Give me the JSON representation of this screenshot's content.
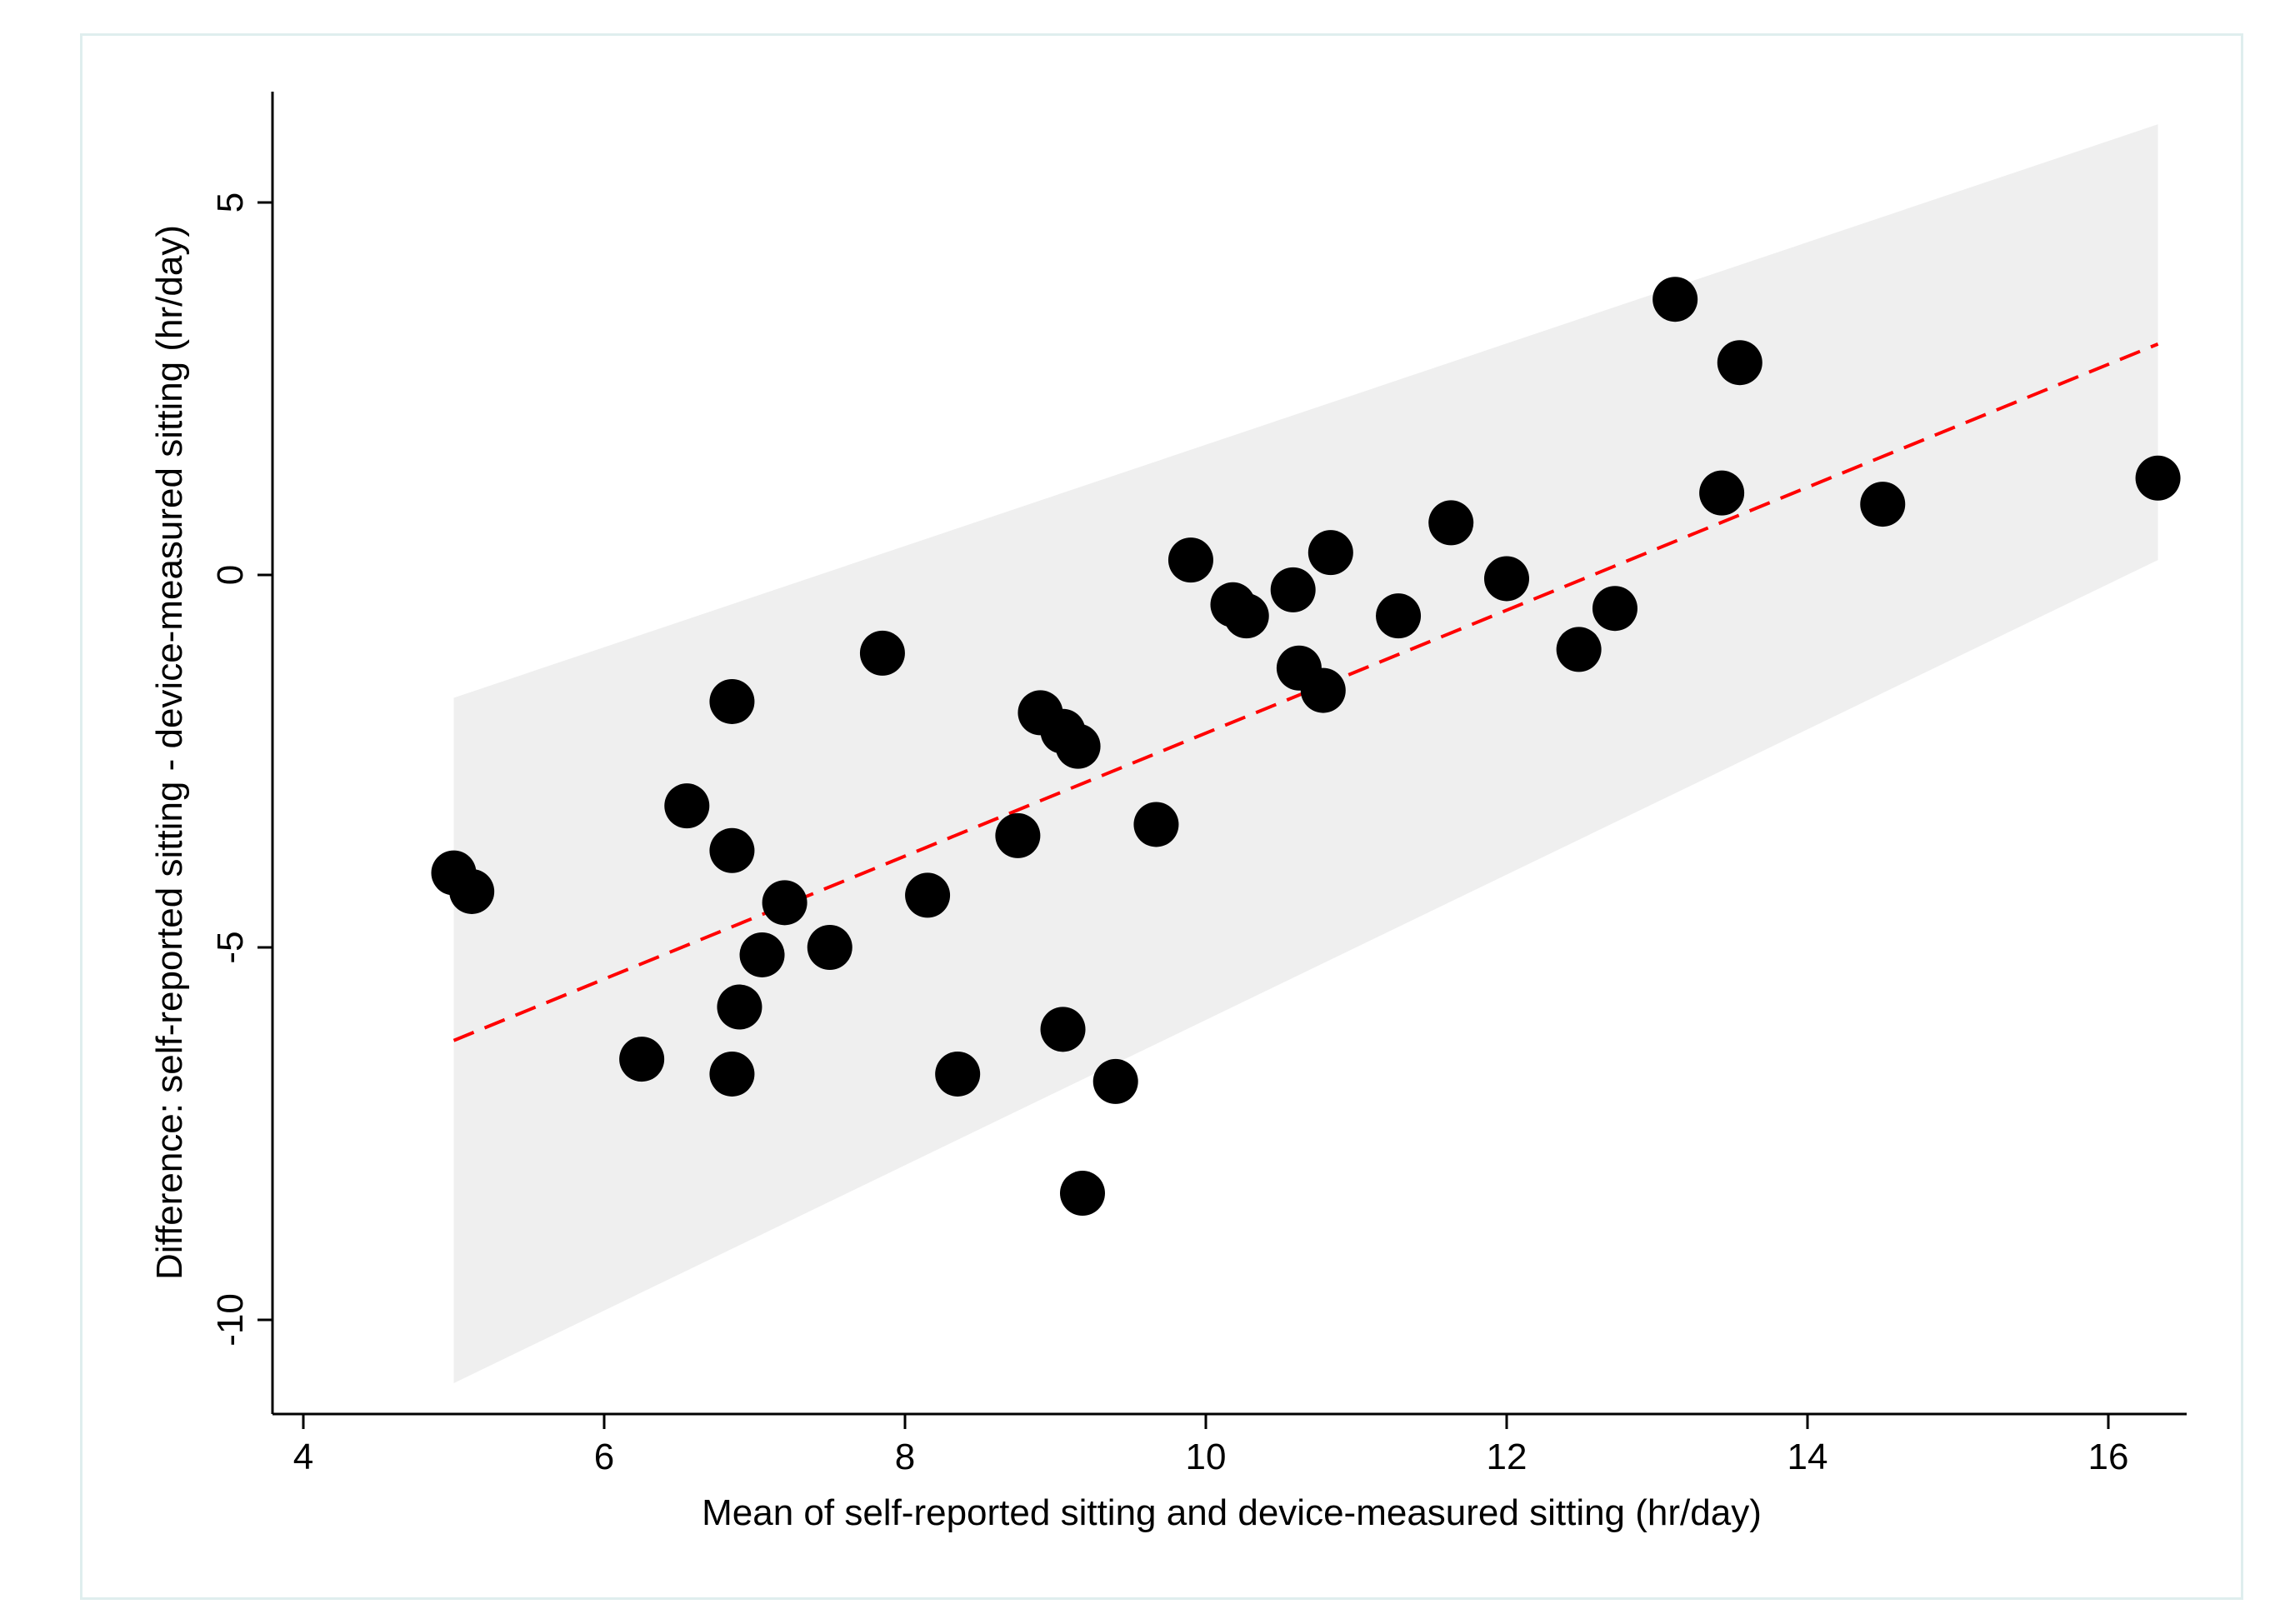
{
  "chart_data": {
    "type": "scatter",
    "xlabel": "Mean of self-reported sitting and device-measured sitting (hr/day)",
    "ylabel": "Difference: self-reported sitting - device-measured sitting (hr/day)",
    "xlim": [
      3.8,
      16.55
    ],
    "ylim": [
      -11.2,
      6.5
    ],
    "xticks": [
      4,
      6,
      8,
      10,
      12,
      14,
      16
    ],
    "yticks": [
      -10,
      -5,
      0,
      5
    ],
    "grid": false,
    "legend": "none",
    "points": [
      {
        "x": 5.0,
        "y": -4.0
      },
      {
        "x": 5.12,
        "y": -4.25
      },
      {
        "x": 6.25,
        "y": -6.5
      },
      {
        "x": 6.55,
        "y": -3.1
      },
      {
        "x": 6.85,
        "y": -1.7
      },
      {
        "x": 6.85,
        "y": -3.7
      },
      {
        "x": 6.85,
        "y": -6.7
      },
      {
        "x": 6.9,
        "y": -5.8
      },
      {
        "x": 7.05,
        "y": -5.1
      },
      {
        "x": 7.2,
        "y": -4.4
      },
      {
        "x": 7.5,
        "y": -5.0
      },
      {
        "x": 7.85,
        "y": -1.05
      },
      {
        "x": 8.15,
        "y": -4.3
      },
      {
        "x": 8.35,
        "y": -6.7
      },
      {
        "x": 8.75,
        "y": -3.5
      },
      {
        "x": 8.9,
        "y": -1.85
      },
      {
        "x": 9.05,
        "y": -2.1
      },
      {
        "x": 9.05,
        "y": -6.1
      },
      {
        "x": 9.15,
        "y": -2.3
      },
      {
        "x": 9.18,
        "y": -8.3
      },
      {
        "x": 9.4,
        "y": -6.8
      },
      {
        "x": 9.67,
        "y": -3.35
      },
      {
        "x": 9.9,
        "y": 0.2
      },
      {
        "x": 10.18,
        "y": -0.4
      },
      {
        "x": 10.27,
        "y": -0.55
      },
      {
        "x": 10.58,
        "y": -0.2
      },
      {
        "x": 10.62,
        "y": -1.25
      },
      {
        "x": 10.78,
        "y": -1.55
      },
      {
        "x": 10.83,
        "y": 0.3
      },
      {
        "x": 11.28,
        "y": -0.55
      },
      {
        "x": 11.63,
        "y": 0.7
      },
      {
        "x": 12.0,
        "y": -0.05
      },
      {
        "x": 12.48,
        "y": -1.0
      },
      {
        "x": 12.72,
        "y": -0.45
      },
      {
        "x": 13.12,
        "y": 3.7
      },
      {
        "x": 13.43,
        "y": 1.1
      },
      {
        "x": 13.55,
        "y": 2.85
      },
      {
        "x": 14.5,
        "y": 0.95
      },
      {
        "x": 16.33,
        "y": 1.3
      }
    ],
    "fit_line": {
      "x": [
        5.0,
        16.33
      ],
      "y": [
        -6.25,
        3.1
      ],
      "color": "#ff0000",
      "style": "dashed"
    },
    "band": {
      "x": [
        5.0,
        16.33
      ],
      "upper": [
        -1.65,
        6.05
      ],
      "lower": [
        -10.85,
        0.2
      ],
      "color": "#efefef"
    },
    "point_color": "#000000"
  }
}
